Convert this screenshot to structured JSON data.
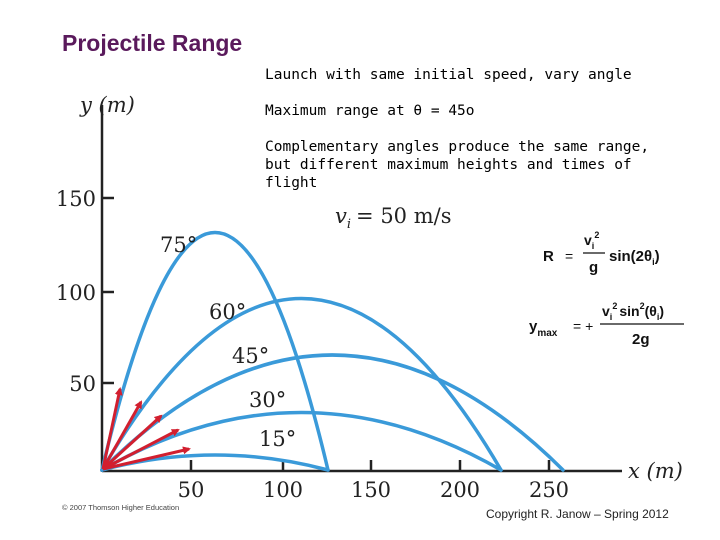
{
  "slide": {
    "title": "Projectile Range",
    "bullets": [
      "Launch with same initial speed, vary angle",
      "Maximum range at θ = 45o",
      "Complementary angles produce the same range, but different maximum heights and times of flight"
    ]
  },
  "figure": {
    "y_axis_label": "y (m)",
    "x_axis_label": "x (m)",
    "y_ticks": [
      "150",
      "100",
      "50"
    ],
    "x_ticks": [
      "50",
      "100",
      "150",
      "200",
      "250"
    ],
    "speed_label": "vi = 50 m/s",
    "speed_symbol": "v",
    "speed_subscript": "i",
    "speed_value": "= 50 m/s",
    "angle_labels": [
      "75°",
      "60°",
      "45°",
      "30°",
      "15°"
    ],
    "curve_color": "#3a9ad9",
    "arrow_color": "#d21f2f"
  },
  "formulas": {
    "range": {
      "lhs": "R",
      "eq": "=",
      "num": "vi2",
      "den": "g",
      "rhs": "sin(2θi)"
    },
    "ymax": {
      "lhs": "ymax",
      "eq": "= +",
      "num": "vi2 sin2(θi)",
      "den": "2g"
    }
  },
  "footer": {
    "publisher": "© 2007 Thomson Higher Education",
    "copyright": "Copyright R. Janow – Spring 2012"
  }
}
